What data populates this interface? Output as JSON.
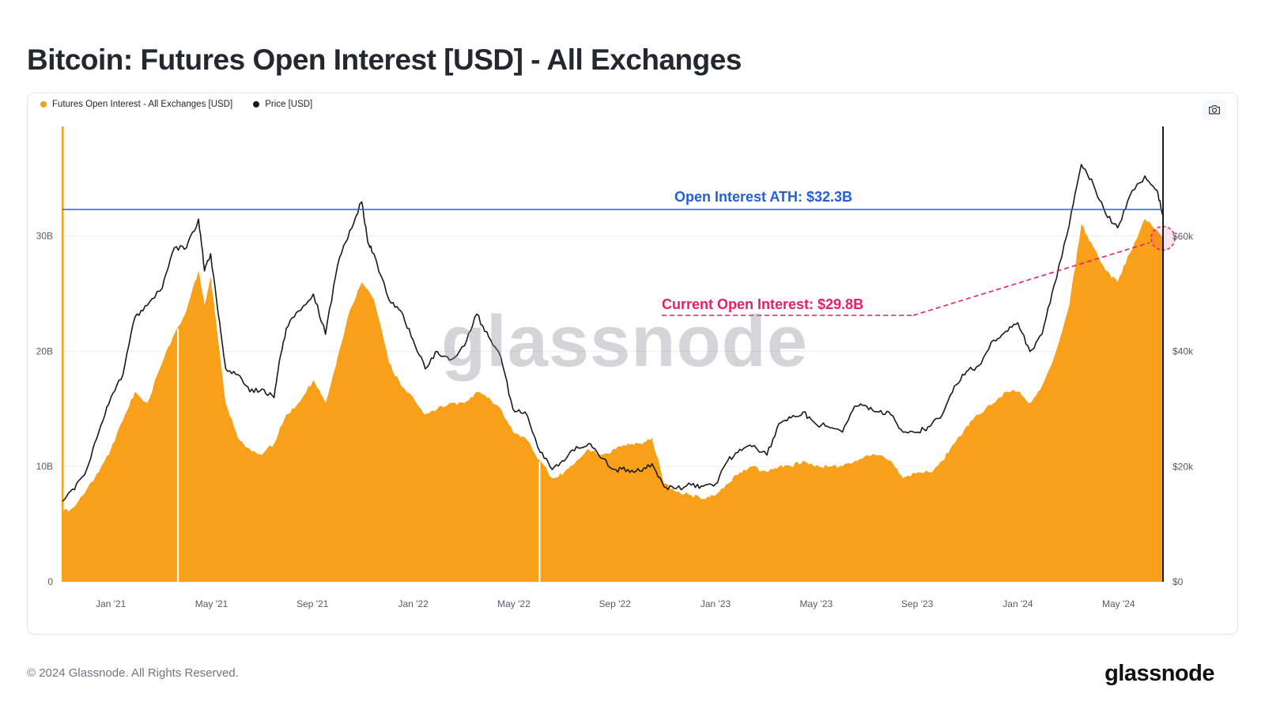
{
  "page": {
    "title": "Bitcoin: Futures Open Interest [USD] - All Exchanges",
    "footer_copyright": "© 2024 Glassnode. All Rights Reserved.",
    "footer_logo": "glassnode",
    "watermark": "glassnode"
  },
  "legend": [
    {
      "label": "Futures Open Interest - All Exchanges [USD]",
      "color": "#f9a01b"
    },
    {
      "label": "Price [USD]",
      "color": "#1a1a1e"
    }
  ],
  "annotations": {
    "ath": {
      "text": "Open Interest ATH: $32.3B",
      "value": "32.3B",
      "color": "#2360d8"
    },
    "current": {
      "text": "Current Open Interest: $29.8B",
      "value": "29.8B",
      "color": "#e91e63"
    }
  },
  "chart_data": {
    "type": "area+line",
    "title": "Bitcoin: Futures Open Interest [USD] - All Exchanges",
    "legend_position": "top-left",
    "grid": true,
    "x_domain": [
      2020.84,
      2024.48
    ],
    "x_ticks": [
      {
        "label": "Jan '21",
        "x": 2021.0
      },
      {
        "label": "May '21",
        "x": 2021.333
      },
      {
        "label": "Sep '21",
        "x": 2021.667
      },
      {
        "label": "Jan '22",
        "x": 2022.0
      },
      {
        "label": "May '22",
        "x": 2022.333
      },
      {
        "label": "Sep '22",
        "x": 2022.667
      },
      {
        "label": "Jan '23",
        "x": 2023.0
      },
      {
        "label": "May '23",
        "x": 2023.333
      },
      {
        "label": "Sep '23",
        "x": 2023.667
      },
      {
        "label": "Jan '24",
        "x": 2024.0
      },
      {
        "label": "May '24",
        "x": 2024.333
      }
    ],
    "left_axis": {
      "unit": "USD billions (open interest)",
      "max": 39.5,
      "ticks": [
        {
          "label": "0",
          "v": 0
        },
        {
          "label": "10B",
          "v": 10
        },
        {
          "label": "20B",
          "v": 20
        },
        {
          "label": "30B",
          "v": 30
        }
      ]
    },
    "right_axis": {
      "unit": "USD thousands (price)",
      "max": 79.1,
      "ticks": [
        {
          "label": "$0",
          "v": 0
        },
        {
          "label": "$20k",
          "v": 20
        },
        {
          "label": "$40k",
          "v": 40
        },
        {
          "label": "$60k",
          "v": 60
        }
      ]
    },
    "ath_line": 32.3,
    "current_value": 29.8,
    "gaps_x": [
      2021.222,
      2022.418
    ],
    "series": [
      {
        "name": "Futures Open Interest - All Exchanges [USD]",
        "type": "area",
        "axis": "left",
        "color": "#f9a01b",
        "points": [
          [
            2020.84,
            6
          ],
          [
            2020.88,
            6.5
          ],
          [
            2020.92,
            8
          ],
          [
            2020.96,
            9.5
          ],
          [
            2021.0,
            11.5
          ],
          [
            2021.04,
            14
          ],
          [
            2021.08,
            16.5
          ],
          [
            2021.12,
            15.5
          ],
          [
            2021.17,
            19
          ],
          [
            2021.21,
            21.5
          ],
          [
            2021.25,
            23.5
          ],
          [
            2021.29,
            27
          ],
          [
            2021.31,
            24
          ],
          [
            2021.33,
            26.5
          ],
          [
            2021.36,
            20
          ],
          [
            2021.38,
            15.5
          ],
          [
            2021.42,
            12.5
          ],
          [
            2021.46,
            11.5
          ],
          [
            2021.5,
            11
          ],
          [
            2021.54,
            12
          ],
          [
            2021.58,
            14.5
          ],
          [
            2021.62,
            15.5
          ],
          [
            2021.67,
            17.5
          ],
          [
            2021.71,
            15.5
          ],
          [
            2021.75,
            19.5
          ],
          [
            2021.79,
            23.5
          ],
          [
            2021.83,
            26
          ],
          [
            2021.87,
            24.5
          ],
          [
            2021.92,
            19
          ],
          [
            2021.96,
            17
          ],
          [
            2022.0,
            16
          ],
          [
            2022.04,
            14.5
          ],
          [
            2022.08,
            15
          ],
          [
            2022.12,
            15.5
          ],
          [
            2022.17,
            15.5
          ],
          [
            2022.21,
            16.5
          ],
          [
            2022.25,
            16
          ],
          [
            2022.29,
            15
          ],
          [
            2022.33,
            13
          ],
          [
            2022.37,
            12.5
          ],
          [
            2022.42,
            10.5
          ],
          [
            2022.46,
            9
          ],
          [
            2022.5,
            9.5
          ],
          [
            2022.54,
            10.5
          ],
          [
            2022.58,
            11.5
          ],
          [
            2022.62,
            11
          ],
          [
            2022.67,
            11.5
          ],
          [
            2022.71,
            12
          ],
          [
            2022.75,
            12
          ],
          [
            2022.79,
            12.5
          ],
          [
            2022.83,
            8.5
          ],
          [
            2022.87,
            7.8
          ],
          [
            2022.92,
            7.5
          ],
          [
            2022.96,
            7.2
          ],
          [
            2023.0,
            7.5
          ],
          [
            2023.04,
            8.5
          ],
          [
            2023.08,
            9.5
          ],
          [
            2023.12,
            10
          ],
          [
            2023.17,
            9.5
          ],
          [
            2023.21,
            10
          ],
          [
            2023.25,
            10
          ],
          [
            2023.29,
            10.5
          ],
          [
            2023.33,
            10
          ],
          [
            2023.37,
            10
          ],
          [
            2023.42,
            10
          ],
          [
            2023.46,
            10.5
          ],
          [
            2023.5,
            11
          ],
          [
            2023.54,
            11
          ],
          [
            2023.58,
            10.5
          ],
          [
            2023.62,
            9
          ],
          [
            2023.67,
            9.5
          ],
          [
            2023.71,
            9.5
          ],
          [
            2023.75,
            10.5
          ],
          [
            2023.79,
            12
          ],
          [
            2023.83,
            13.5
          ],
          [
            2023.87,
            14.5
          ],
          [
            2023.92,
            15.5
          ],
          [
            2023.96,
            16.5
          ],
          [
            2024.0,
            16.5
          ],
          [
            2024.04,
            15.5
          ],
          [
            2024.08,
            17
          ],
          [
            2024.12,
            19.5
          ],
          [
            2024.17,
            24
          ],
          [
            2024.21,
            31
          ],
          [
            2024.25,
            29
          ],
          [
            2024.29,
            27
          ],
          [
            2024.33,
            26
          ],
          [
            2024.37,
            28.5
          ],
          [
            2024.42,
            31.5
          ],
          [
            2024.46,
            30.5
          ],
          [
            2024.48,
            29.8
          ]
        ]
      },
      {
        "name": "Price [USD]",
        "type": "line",
        "axis": "right",
        "color": "#1a1a1e",
        "points": [
          [
            2020.84,
            14
          ],
          [
            2020.88,
            16
          ],
          [
            2020.92,
            19.5
          ],
          [
            2020.96,
            26
          ],
          [
            2021.0,
            32
          ],
          [
            2021.04,
            36
          ],
          [
            2021.08,
            46
          ],
          [
            2021.12,
            48
          ],
          [
            2021.17,
            51
          ],
          [
            2021.21,
            58
          ],
          [
            2021.25,
            58
          ],
          [
            2021.29,
            63
          ],
          [
            2021.31,
            54
          ],
          [
            2021.33,
            57
          ],
          [
            2021.36,
            45
          ],
          [
            2021.38,
            37
          ],
          [
            2021.42,
            36
          ],
          [
            2021.46,
            33
          ],
          [
            2021.5,
            33.5
          ],
          [
            2021.54,
            32
          ],
          [
            2021.56,
            39
          ],
          [
            2021.58,
            44
          ],
          [
            2021.62,
            47
          ],
          [
            2021.67,
            50
          ],
          [
            2021.71,
            43
          ],
          [
            2021.75,
            55
          ],
          [
            2021.79,
            61
          ],
          [
            2021.83,
            66
          ],
          [
            2021.85,
            59
          ],
          [
            2021.87,
            57
          ],
          [
            2021.92,
            49
          ],
          [
            2021.96,
            47
          ],
          [
            2022.0,
            42
          ],
          [
            2022.04,
            37
          ],
          [
            2022.08,
            40
          ],
          [
            2022.12,
            38.5
          ],
          [
            2022.17,
            41
          ],
          [
            2022.21,
            46.5
          ],
          [
            2022.25,
            42.5
          ],
          [
            2022.29,
            39
          ],
          [
            2022.33,
            30
          ],
          [
            2022.37,
            29.5
          ],
          [
            2022.42,
            22.5
          ],
          [
            2022.46,
            19.5
          ],
          [
            2022.5,
            21
          ],
          [
            2022.54,
            23.5
          ],
          [
            2022.58,
            24
          ],
          [
            2022.62,
            21.5
          ],
          [
            2022.67,
            19.5
          ],
          [
            2022.71,
            19.5
          ],
          [
            2022.75,
            19.2
          ],
          [
            2022.79,
            20.5
          ],
          [
            2022.83,
            16.5
          ],
          [
            2022.87,
            16.2
          ],
          [
            2022.92,
            16.8
          ],
          [
            2022.96,
            16.6
          ],
          [
            2023.0,
            17
          ],
          [
            2023.04,
            21
          ],
          [
            2023.08,
            23
          ],
          [
            2023.12,
            23.5
          ],
          [
            2023.17,
            22
          ],
          [
            2023.21,
            27.5
          ],
          [
            2023.25,
            28.5
          ],
          [
            2023.29,
            29.5
          ],
          [
            2023.33,
            27.5
          ],
          [
            2023.37,
            27
          ],
          [
            2023.42,
            26
          ],
          [
            2023.46,
            30.5
          ],
          [
            2023.5,
            30.5
          ],
          [
            2023.54,
            29.5
          ],
          [
            2023.58,
            29
          ],
          [
            2023.62,
            26
          ],
          [
            2023.67,
            26
          ],
          [
            2023.71,
            27
          ],
          [
            2023.75,
            29
          ],
          [
            2023.79,
            34
          ],
          [
            2023.83,
            36.5
          ],
          [
            2023.87,
            37.5
          ],
          [
            2023.92,
            42
          ],
          [
            2023.96,
            43.5
          ],
          [
            2024.0,
            45
          ],
          [
            2024.04,
            40
          ],
          [
            2024.08,
            43
          ],
          [
            2024.12,
            51.5
          ],
          [
            2024.17,
            62
          ],
          [
            2024.21,
            72.5
          ],
          [
            2024.25,
            69
          ],
          [
            2024.29,
            64
          ],
          [
            2024.33,
            61.5
          ],
          [
            2024.37,
            67
          ],
          [
            2024.42,
            70.5
          ],
          [
            2024.46,
            68
          ],
          [
            2024.48,
            63.5
          ]
        ]
      }
    ]
  }
}
